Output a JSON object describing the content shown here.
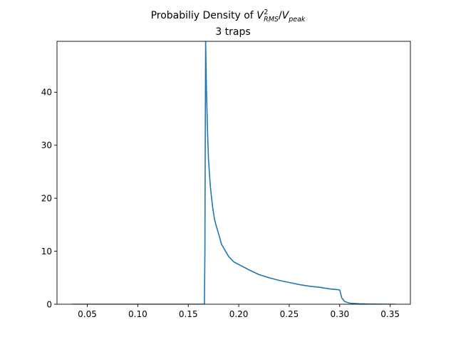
{
  "chart_data": {
    "type": "line",
    "title": {
      "prefix": "Probabiliy Density of ",
      "v_rms_base": "V",
      "v_rms_sup": "2",
      "v_rms_sub": "RMS",
      "slash": "/",
      "v_peak_base": "V",
      "v_peak_sub": "peak"
    },
    "subtitle": "3 traps",
    "xlabel": "",
    "ylabel": "",
    "xlim": [
      0.02,
      0.37
    ],
    "ylim": [
      0,
      49.6
    ],
    "xticks": [
      0.05,
      0.1,
      0.15,
      0.2,
      0.25,
      0.3,
      0.35
    ],
    "xtick_labels": [
      "0.05",
      "0.10",
      "0.15",
      "0.20",
      "0.25",
      "0.30",
      "0.35"
    ],
    "yticks": [
      0,
      10,
      20,
      30,
      40
    ],
    "ytick_labels": [
      "0",
      "10",
      "20",
      "30",
      "40"
    ],
    "grid": false,
    "line_color": "#1f77b4",
    "series": [
      {
        "x": [
          0.035,
          0.05,
          0.1,
          0.15,
          0.166,
          0.1665,
          0.1668,
          0.1672,
          0.168,
          0.169,
          0.17,
          0.171,
          0.172,
          0.174,
          0.176,
          0.178,
          0.18,
          0.183,
          0.186,
          0.19,
          0.195,
          0.2,
          0.21,
          0.22,
          0.23,
          0.24,
          0.25,
          0.26,
          0.27,
          0.28,
          0.29,
          0.295,
          0.298,
          0.3,
          0.302,
          0.305,
          0.31,
          0.32,
          0.33,
          0.34,
          0.35,
          0.355
        ],
        "y": [
          0,
          0,
          0,
          0,
          0,
          10,
          30,
          49.6,
          40.5,
          33.2,
          27.5,
          24.5,
          22.0,
          18.5,
          16.0,
          14.6,
          13.3,
          11.3,
          10.3,
          9.0,
          8.0,
          7.5,
          6.5,
          5.6,
          5.0,
          4.5,
          4.1,
          3.7,
          3.4,
          3.2,
          2.9,
          2.8,
          2.75,
          2.7,
          1.2,
          0.5,
          0.2,
          0.08,
          0.03,
          0.01,
          0,
          0
        ]
      }
    ]
  }
}
